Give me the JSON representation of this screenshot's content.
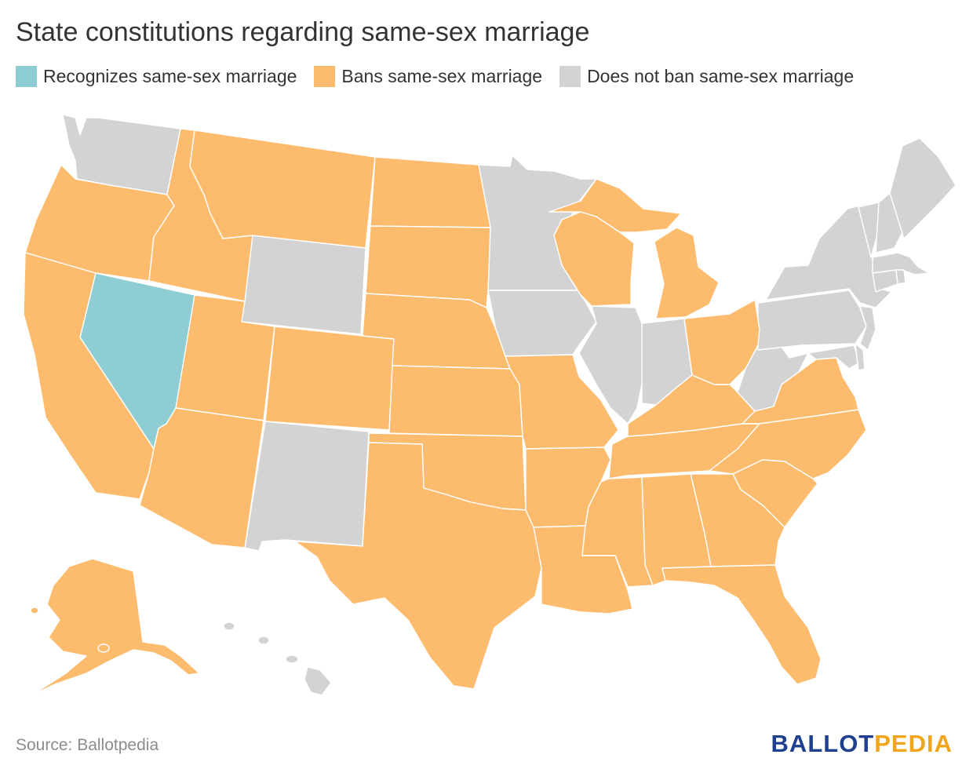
{
  "title": "State constitutions regarding same-sex marriage",
  "legend": [
    {
      "label": "Recognizes same-sex marriage",
      "color": "#8dcdd3"
    },
    {
      "label": "Bans same-sex marriage",
      "color": "#fdbb6e"
    },
    {
      "label": "Does not ban same-sex marriage",
      "color": "#d3d3d3"
    }
  ],
  "source": "Source: Ballotpedia",
  "logo": {
    "part1": "BALLOT",
    "part2": "PEDIA"
  },
  "colors": {
    "recognizes": "#8dcdd3",
    "bans": "#fdbb6e",
    "no_ban": "#d3d3d3"
  }
}
